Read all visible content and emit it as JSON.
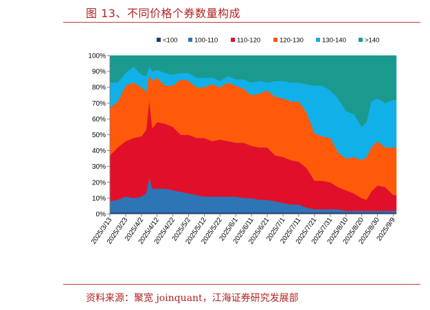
{
  "figure_title": "图 13、不同价格个券数量构成",
  "source_note": "资料来源：聚宽 joinquant，江海证券研究发展部",
  "chart_data": {
    "type": "area",
    "stacked": true,
    "normalized": true,
    "title": "",
    "xlabel": "",
    "ylabel": "",
    "ylim": [
      0,
      100
    ],
    "y_ticks": [
      "0%",
      "10%",
      "20%",
      "30%",
      "40%",
      "50%",
      "60%",
      "70%",
      "80%",
      "90%",
      "100%"
    ],
    "x_ticks": [
      "2025/3/13",
      "2025/3/23",
      "2025/4/2",
      "2025/4/12",
      "2025/4/22",
      "2025/5/2",
      "2025/5/12",
      "2025/5/22",
      "2025/6/1",
      "2025/6/11",
      "2025/6/21",
      "2025/7/1",
      "2025/7/11",
      "2025/7/21",
      "2025/7/31",
      "2025/8/10",
      "2025/8/20",
      "2025/8/30",
      "2025/9/9"
    ],
    "x_range": [
      "2025/3/13",
      "2025/9/11"
    ],
    "legend_position": "top",
    "grid": false,
    "colors": {
      "<100": "#1f3a78",
      "100-110": "#2e75b6",
      "110-120": "#e0102a",
      "120-130": "#ff5a0a",
      "130-140": "#12b0e8",
      ">140": "#1a9a8e"
    },
    "x": [
      "2025/3/13",
      "2025/3/18",
      "2025/3/23",
      "2025/3/28",
      "2025/4/2",
      "2025/4/5",
      "2025/4/7",
      "2025/4/9",
      "2025/4/12",
      "2025/4/17",
      "2025/4/22",
      "2025/4/27",
      "2025/5/2",
      "2025/5/7",
      "2025/5/12",
      "2025/5/17",
      "2025/5/22",
      "2025/5/27",
      "2025/6/1",
      "2025/6/6",
      "2025/6/11",
      "2025/6/16",
      "2025/6/21",
      "2025/6/26",
      "2025/7/1",
      "2025/7/6",
      "2025/7/11",
      "2025/7/16",
      "2025/7/21",
      "2025/7/26",
      "2025/7/31",
      "2025/8/5",
      "2025/8/10",
      "2025/8/15",
      "2025/8/20",
      "2025/8/23",
      "2025/8/26",
      "2025/8/30",
      "2025/9/4",
      "2025/9/9",
      "2025/9/11"
    ],
    "series": [
      {
        "name": "<100",
        "values": [
          1,
          1,
          1,
          1,
          1,
          1,
          1,
          1,
          1,
          1,
          1,
          1,
          1,
          1,
          1,
          1,
          1,
          1,
          1,
          1,
          1,
          1,
          1,
          1,
          1,
          1,
          1,
          1,
          1,
          1,
          1,
          1,
          1,
          1,
          1,
          1,
          1,
          1,
          1,
          1,
          1
        ]
      },
      {
        "name": "100-110",
        "values": [
          7,
          8,
          10,
          9,
          10,
          12,
          22,
          15,
          15,
          15,
          14,
          13,
          12,
          11,
          10,
          10,
          10,
          10,
          10,
          9,
          9,
          8,
          8,
          7,
          6,
          5,
          5,
          3,
          2,
          2,
          2,
          2,
          1,
          1,
          1,
          1,
          1,
          1,
          1,
          1,
          1
        ]
      },
      {
        "name": "110-120",
        "values": [
          29,
          33,
          35,
          38,
          38,
          40,
          49,
          38,
          42,
          41,
          40,
          36,
          37,
          36,
          37,
          35,
          36,
          35,
          34,
          35,
          33,
          33,
          33,
          29,
          29,
          28,
          27,
          25,
          18,
          18,
          17,
          14,
          13,
          11,
          8,
          7,
          12,
          16,
          15,
          10,
          10
        ]
      },
      {
        "name": "120-130",
        "values": [
          30,
          29,
          35,
          35,
          31,
          24,
          16,
          30,
          28,
          24,
          26,
          35,
          34,
          32,
          32,
          36,
          33,
          37,
          36,
          34,
          32,
          34,
          36,
          37,
          37,
          37,
          38,
          35,
          30,
          28,
          28,
          22,
          20,
          23,
          24,
          27,
          28,
          28,
          25,
          30,
          30
        ]
      },
      {
        "name": "130-140",
        "values": [
          16,
          12,
          8,
          10,
          8,
          10,
          5,
          6,
          5,
          8,
          7,
          4,
          5,
          6,
          6,
          4,
          4,
          4,
          4,
          6,
          8,
          8,
          5,
          10,
          11,
          12,
          12,
          18,
          30,
          32,
          30,
          34,
          30,
          27,
          21,
          22,
          29,
          27,
          28,
          30,
          30
        ]
      },
      {
        "name": ">140",
        "values": [
          17,
          17,
          11,
          7,
          12,
          13,
          7,
          10,
          9,
          11,
          12,
          11,
          11,
          14,
          14,
          14,
          16,
          13,
          15,
          15,
          17,
          16,
          17,
          16,
          16,
          17,
          17,
          18,
          19,
          19,
          22,
          27,
          35,
          37,
          45,
          42,
          29,
          27,
          30,
          28,
          28
        ]
      }
    ]
  }
}
